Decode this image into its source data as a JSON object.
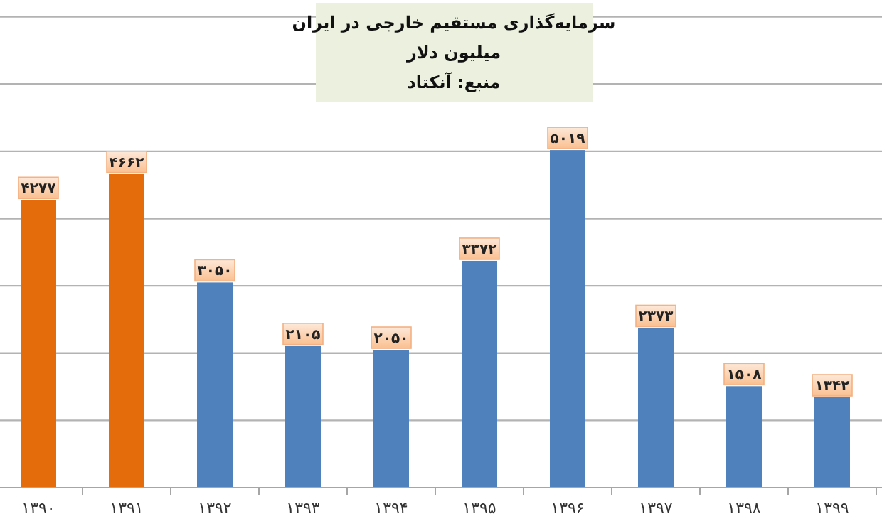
{
  "chart_data": {
    "type": "bar",
    "title": "سرمایه‌گذاری مستقیم خارجی در ایران",
    "subtitle": "میلیون دلار",
    "annotations": [
      "منبع: آنکتاد"
    ],
    "categories": [
      "۱۳۹۰",
      "۱۳۹۱",
      "۱۳۹۲",
      "۱۳۹۳",
      "۱۳۹۴",
      "۱۳۹۵",
      "۱۳۹۶",
      "۱۳۹۷",
      "۱۳۹۸",
      "۱۳۹۹"
    ],
    "values": [
      4277,
      4662,
      3050,
      2105,
      2050,
      3372,
      5019,
      2373,
      1508,
      1342
    ],
    "colors": [
      "#e46c0a",
      "#e46c0a",
      "#4f81bd",
      "#4f81bd",
      "#4f81bd",
      "#4f81bd",
      "#4f81bd",
      "#4f81bd",
      "#4f81bd",
      "#4f81bd"
    ],
    "value_labels": [
      "۴۲۷۷",
      "۴۶۶۲",
      "۳۰۵۰",
      "۲۱۰۵",
      "۲۰۵۰",
      "۳۳۷۲",
      "۵۰۱۹",
      "۲۳۷۳",
      "۱۵۰۸",
      "۱۳۴۲"
    ],
    "ylim": [
      0,
      7250
    ],
    "yticks": [
      {
        "value": 1000,
        "label": null
      },
      {
        "value": 2000,
        "label": null
      },
      {
        "value": 3000,
        "label": null
      },
      {
        "value": 4000,
        "label": null
      },
      {
        "value": 5000,
        "label": null
      },
      {
        "value": 6000,
        "label": null
      },
      {
        "value": 7000,
        "label": null
      }
    ],
    "grid": "y",
    "tick_labels": "x"
  }
}
